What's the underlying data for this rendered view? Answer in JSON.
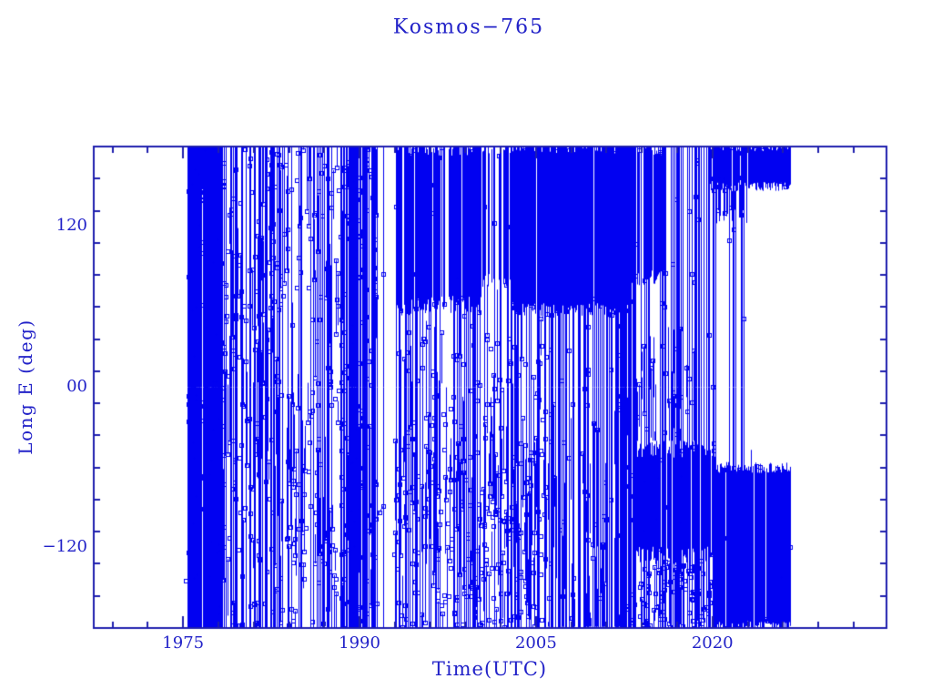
{
  "chart_data": {
    "type": "scatter",
    "title": "Kosmos−765",
    "xlabel": "Time(UTC)",
    "ylabel": "Long E (deg)",
    "xlim": [
      1967.4,
      2034.8
    ],
    "ylim": [
      -180,
      180
    ],
    "x_major_ticks": [
      1975,
      1990,
      2005,
      2020
    ],
    "x_tick_labels": [
      "1975",
      "1990",
      "2005",
      "2020"
    ],
    "x_minor_tick_step_years": 3,
    "y_major_ticks": [
      120,
      0,
      -120
    ],
    "y_tick_labels": [
      "120",
      "00",
      "−120"
    ],
    "y_minor_tick_step_deg": 24,
    "grid": false,
    "legend_position": "none",
    "marker": "open-square",
    "marker_size_px": 5,
    "colors": {
      "data": "#0101f1",
      "axis": "#1f1fae",
      "text": "#2222c8",
      "background": "#ffffff"
    },
    "seed": 20240765,
    "note": "Single series: sub-satellite longitude (deg E) vs time; dense drift wrap lines and libration bands synthesized from the segment parameters below.",
    "wrap_line_segments": [
      {
        "t0": 1975.3,
        "t1": 1978.2,
        "lines_per_year": 30
      },
      {
        "t0": 1978.2,
        "t1": 1983.5,
        "lines_per_year": 9
      },
      {
        "t0": 1983.5,
        "t1": 1986.3,
        "lines_per_year": 3
      },
      {
        "t0": 1986.3,
        "t1": 1988.4,
        "lines_per_year": 6
      },
      {
        "t0": 1988.4,
        "t1": 1991.4,
        "lines_per_year": 22
      },
      {
        "t0": 1991.4,
        "t1": 1992.9,
        "lines_per_year": 1.5
      },
      {
        "t0": 1992.9,
        "t1": 2000.3,
        "lines_per_year": 5
      },
      {
        "t0": 2000.3,
        "t1": 2002.9,
        "lines_per_year": 3
      },
      {
        "t0": 2002.9,
        "t1": 2005.9,
        "lines_per_year": 6
      },
      {
        "t0": 2005.9,
        "t1": 2013.0,
        "lines_per_year": 10
      },
      {
        "t0": 2013.0,
        "t1": 2020.3,
        "lines_per_year": 7
      },
      {
        "t0": 2020.3,
        "t1": 2024.2,
        "lines_per_year": 2
      }
    ],
    "bands": [
      {
        "t0": 1992.9,
        "t1": 1995.2,
        "lon0": 60,
        "lon1": 180,
        "density": 0.55,
        "jitter": 10,
        "mode": "solid"
      },
      {
        "t0": 1995.2,
        "t1": 2000.3,
        "lon0": 62,
        "lon1": 180,
        "density": 0.8,
        "jitter": 10,
        "mode": "solid"
      },
      {
        "t0": 2000.3,
        "t1": 2002.9,
        "lon0": 80,
        "lon1": 180,
        "density": 0.4,
        "jitter": 12,
        "mode": "solid"
      },
      {
        "t0": 2002.9,
        "t1": 2013.0,
        "lon0": 58,
        "lon1": 180,
        "density": 0.97,
        "jitter": 8,
        "mode": "solid"
      },
      {
        "t0": 2012.8,
        "t1": 2016.0,
        "lon0": 82,
        "lon1": 180,
        "density": 0.85,
        "jitter": 10,
        "mode": "solid"
      },
      {
        "t0": 2019.6,
        "t1": 2026.6,
        "lon0": 150,
        "lon1": 180,
        "density": 0.97,
        "jitter": 5,
        "mode": "solid"
      },
      {
        "t0": 2020.1,
        "t1": 2022.9,
        "lon0": 128,
        "lon1": 152,
        "density": 0.45,
        "jitter": 8,
        "mode": "solid"
      },
      {
        "t0": 2013.5,
        "t1": 2020.3,
        "lon0": -126,
        "lon1": -46,
        "density": 0.85,
        "jitter": 10,
        "mode": "solid"
      },
      {
        "t0": 2020.0,
        "t1": 2026.6,
        "lon0": -179,
        "lon1": -60,
        "density": 0.96,
        "jitter": 6,
        "mode": "solid"
      },
      {
        "t0": 2013.3,
        "t1": 2018.5,
        "lon0": -40,
        "lon1": 45,
        "density": 0.5,
        "jitter": 12,
        "mode": "hatch"
      },
      {
        "t0": 2005.9,
        "t1": 2013.0,
        "lon0": -179,
        "lon1": -5,
        "density": 0.55,
        "jitter": 15,
        "mode": "hatch"
      }
    ],
    "scatter_regions": [
      {
        "t0": 1975.3,
        "t1": 1991.4,
        "lon0": -180,
        "lon1": 180,
        "n": 420,
        "line_prob": 0.5
      },
      {
        "t0": 1992.9,
        "t1": 2005.9,
        "lon0": -180,
        "lon1": -35,
        "n": 230,
        "line_prob": 0.6
      },
      {
        "t0": 1992.9,
        "t1": 2005.9,
        "lon0": -30,
        "lon1": 55,
        "n": 60,
        "line_prob": 0.4
      },
      {
        "t0": 2013.0,
        "t1": 2020.3,
        "lon0": -180,
        "lon1": -128,
        "n": 90,
        "line_prob": 0.5
      },
      {
        "t0": 2022.5,
        "t1": 2026.6,
        "lon0": -165,
        "lon1": -85,
        "n": 12,
        "line_prob": 0.2
      },
      {
        "t0": 1975.2,
        "t1": 1976.2,
        "lon0": -180,
        "lon1": -140,
        "n": 8,
        "line_prob": 0.3
      }
    ],
    "drift_segments": [
      {
        "t0": 1990.8,
        "lon_start": -107,
        "t1": 1992.0,
        "lon_end": -89,
        "markers": 4
      }
    ]
  }
}
